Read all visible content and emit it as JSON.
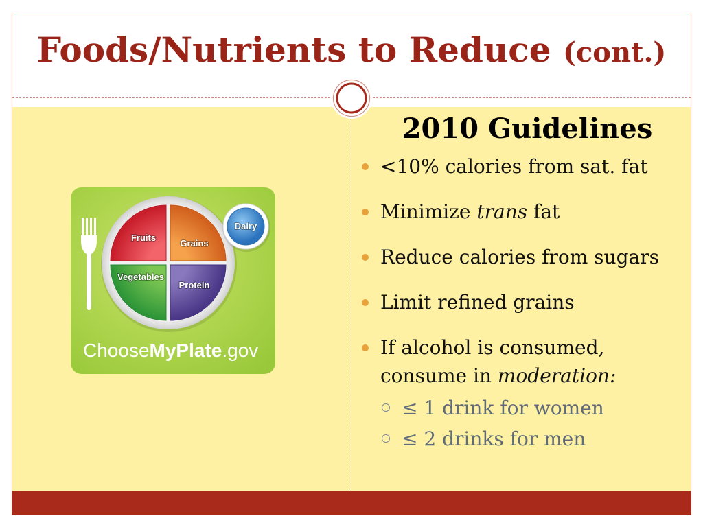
{
  "slide": {
    "title": "Foods/Nutrients to Reduce",
    "title_suffix": "(cont.)"
  },
  "colors": {
    "title": "#9A2418",
    "frame": "#C46A5A",
    "content_background": "#FFF1A4",
    "bottom_bar": "#A92A1B",
    "bullet": "#E8A13B",
    "body_text": "#111111",
    "sub_text": "#5F6B76"
  },
  "myplate": {
    "food_groups": {
      "fruits": "Fruits",
      "grains": "Grains",
      "vegetables": "Vegetables",
      "protein": "Protein",
      "dairy": "Dairy"
    },
    "group_colors": {
      "fruits": "#D9262F",
      "grains": "#E4772A",
      "vegetables": "#3FA33E",
      "protein": "#5E4B98",
      "dairy": "#3A8ED3"
    },
    "logo": {
      "choose": "Choose",
      "myplate": "MyPlate",
      "domain": ".gov"
    },
    "icons": {
      "utensil": "fork-icon",
      "plate": "plate-icon",
      "cup": "dairy-cup-icon"
    }
  },
  "guidelines": {
    "heading": "2010 Guidelines",
    "bullets": [
      {
        "parts": [
          "<10% calories from sat. fat"
        ]
      },
      {
        "parts": [
          "Minimize",
          "trans",
          "fat"
        ]
      },
      {
        "parts": [
          "Reduce calories from sugars"
        ]
      },
      {
        "parts": [
          "Limit refined grains"
        ]
      },
      {
        "parts": [
          "If alcohol is consumed,",
          "consume in",
          "moderation:"
        ],
        "sub_bullets": [
          "≤ 1 drink for women",
          "≤ 2 drinks for men"
        ]
      }
    ]
  }
}
